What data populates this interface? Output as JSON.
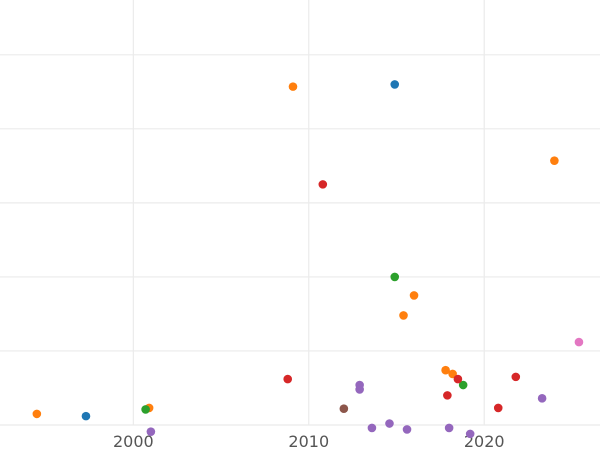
{
  "chart_data": {
    "type": "scatter",
    "title": "",
    "xlabel": "",
    "ylabel": "",
    "grid": true,
    "legend": "none",
    "xlim": [
      1992.4,
      2026.6
    ],
    "ylim": [
      0,
      57.4
    ],
    "x_ticks": [
      2000,
      2010,
      2020
    ],
    "x_tick_labels": [
      "2000",
      "2010",
      "2020"
    ],
    "y_gridlines": [
      0,
      10,
      20,
      30,
      40,
      50
    ],
    "series": [
      {
        "color": "#1f77b4",
        "points": [
          [
            1997.3,
            1.2
          ],
          [
            2014.9,
            46.0
          ]
        ]
      },
      {
        "color": "#ff7f0e",
        "points": [
          [
            1994.5,
            1.5
          ],
          [
            2000.9,
            2.3
          ],
          [
            2009.1,
            45.7
          ],
          [
            2024.0,
            35.7
          ],
          [
            2016.0,
            17.5
          ],
          [
            2015.4,
            14.8
          ],
          [
            2017.8,
            7.4
          ],
          [
            2018.2,
            6.9
          ]
        ]
      },
      {
        "color": "#2ca02c",
        "points": [
          [
            2000.7,
            2.1
          ],
          [
            2014.9,
            20.0
          ],
          [
            2018.8,
            5.4
          ]
        ]
      },
      {
        "color": "#d62728",
        "points": [
          [
            2010.8,
            32.5
          ],
          [
            2008.8,
            6.2
          ],
          [
            2018.5,
            6.2
          ],
          [
            2017.9,
            4.0
          ],
          [
            2021.8,
            6.5
          ],
          [
            2020.8,
            2.3
          ]
        ]
      },
      {
        "color": "#9467bd",
        "points": [
          [
            2001.0,
            -0.9
          ],
          [
            2012.9,
            4.8
          ],
          [
            2012.9,
            5.4
          ],
          [
            2013.6,
            -0.4
          ],
          [
            2014.6,
            0.2
          ],
          [
            2015.6,
            -0.6
          ],
          [
            2018.0,
            -0.4
          ],
          [
            2019.2,
            -1.2
          ],
          [
            2023.3,
            3.6
          ]
        ]
      },
      {
        "color": "#8c564b",
        "points": [
          [
            2012.0,
            2.2
          ]
        ]
      },
      {
        "color": "#e377c2",
        "points": [
          [
            2025.4,
            11.2
          ]
        ]
      }
    ]
  }
}
